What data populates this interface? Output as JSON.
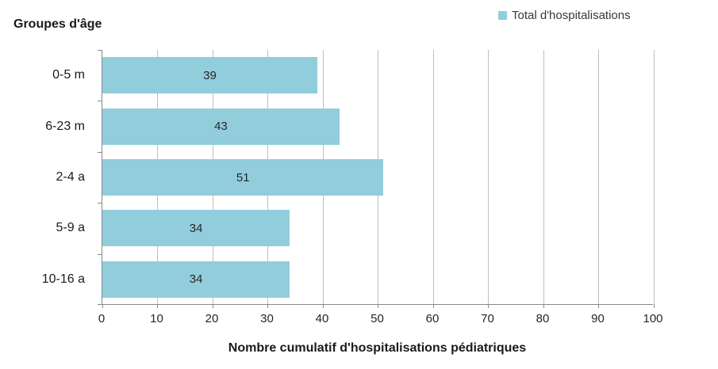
{
  "chart_data": {
    "type": "bar",
    "orientation": "horizontal",
    "title": "Groupes d'âge",
    "series_name": "Total d'hospitalisations",
    "categories": [
      "0-5 m",
      "6-23 m",
      "2-4 a",
      "5-9 a",
      "10-16 a"
    ],
    "values": [
      39,
      43,
      51,
      34,
      34
    ],
    "xlabel": "Nombre cumulatif d'hospitalisations pédiatriques",
    "xlim": [
      0,
      100
    ],
    "x_ticks": [
      0,
      10,
      20,
      30,
      40,
      50,
      60,
      70,
      80,
      90,
      100
    ],
    "grid": true,
    "legend_position": "top-right",
    "data_labels": "center",
    "colors": {
      "bar_fill": "#92CDDC",
      "gridline": "#BFBFBF",
      "axis_line": "#898989",
      "label_text": "#262626"
    }
  }
}
